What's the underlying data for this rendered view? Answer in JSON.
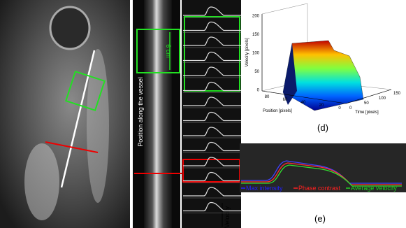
{
  "panel_b": {
    "scale_label": "6 cm",
    "axis_label": "Position along the vessel"
  },
  "panel_c": {
    "axis_label": "Velocity"
  },
  "panel_d": {
    "caption": "(d)",
    "z_label": "Velocity [pixels]",
    "y_label": "Position [pixels]",
    "x_label": "Time [pixels]",
    "z_ticks": [
      200,
      150,
      100,
      50,
      0
    ],
    "y_ticks": [
      80,
      60,
      40,
      20,
      0
    ],
    "x_ticks": [
      0,
      50,
      100,
      150
    ]
  },
  "panel_e": {
    "caption": "(e)",
    "legend": [
      "Max intensity",
      "Phase contrast",
      "Average velocity"
    ]
  }
}
